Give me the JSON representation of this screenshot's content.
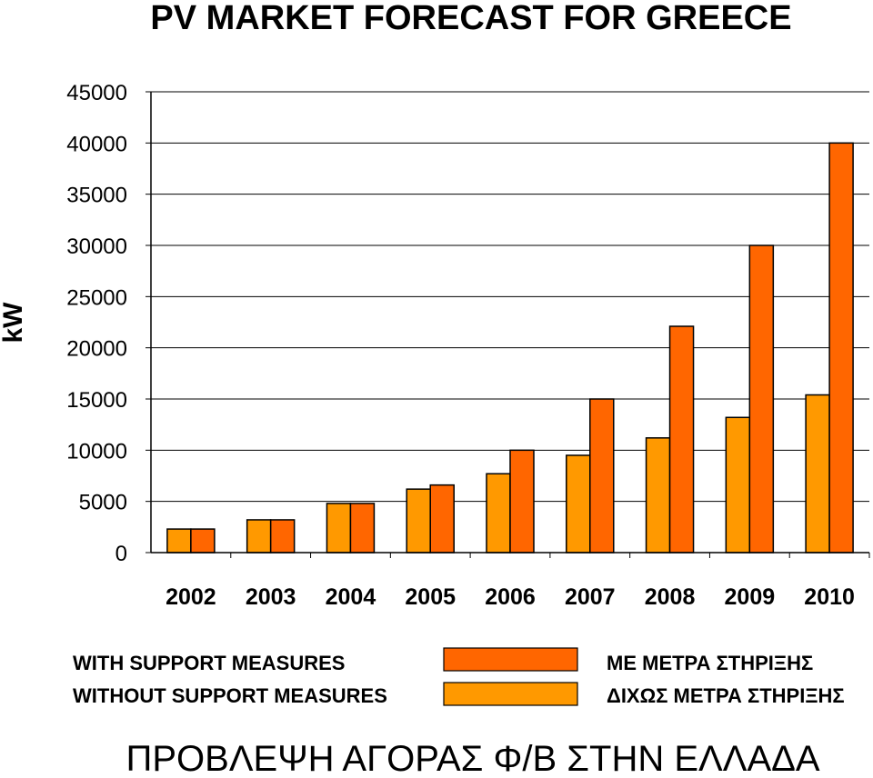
{
  "chart_data": {
    "type": "bar",
    "title": "PV MARKET FORECAST FOR GREECE",
    "ylabel": "kW",
    "xlabel": "",
    "ylim": [
      0,
      45000
    ],
    "yticks": [
      0,
      5000,
      10000,
      15000,
      20000,
      25000,
      30000,
      35000,
      40000,
      45000
    ],
    "grid": true,
    "categories": [
      "2002",
      "2003",
      "2004",
      "2005",
      "2006",
      "2007",
      "2008",
      "2009",
      "2010"
    ],
    "series": [
      {
        "name": "WITHOUT SUPPORT MEASURES",
        "name_greek": "ΔΙΧΩΣ ΜΕΤΡΑ ΣΤΗΡΙΞΗΣ",
        "color": "#FF9900",
        "values": [
          2300,
          3200,
          4800,
          6200,
          7700,
          9500,
          11200,
          13200,
          15400
        ]
      },
      {
        "name": "WITH SUPPORT MEASURES",
        "name_greek": "ΜΕ ΜΕΤΡΑ ΣΤΗΡΙΞΗΣ",
        "color": "#FF6600",
        "values": [
          2300,
          3200,
          4800,
          6600,
          10000,
          15000,
          22100,
          30000,
          40000
        ]
      }
    ],
    "legend_position": "bottom",
    "bottom_title": "ΠΡΟΒΛΕΨΗ ΑΓΟΡΑΣ Φ/Β ΣΤΗΝ ΕΛΛΑΔΑ"
  }
}
